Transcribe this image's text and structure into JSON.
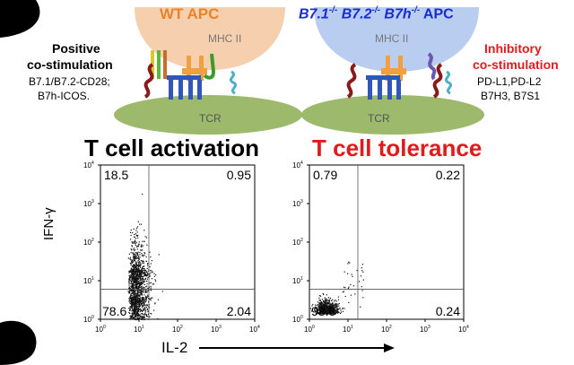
{
  "colors": {
    "wt": "#e8832a",
    "mutant": "#1a2ccc",
    "inhibitory": "#e01b1b",
    "activation": "#000000",
    "tolerance": "#e01b1b",
    "apc_wt": "#f6cfae",
    "apc_mut": "#b9cdf0",
    "tcell": "#9cb96c",
    "mhc": "#f0a040",
    "tcr": "#2f56b8"
  },
  "left_panel": {
    "apc_title": "WT  APC",
    "mhc_label": "MHC II",
    "tcr_label": "TCR",
    "side_title_1": "Positive",
    "side_title_2": "co-stimulation",
    "side_line_1": "B7.1/B7.2-CD28;",
    "side_line_2": "B7h-ICOS.",
    "outcome": "T cell activation"
  },
  "right_panel": {
    "apc_title_parts": [
      "B7.1",
      "-/-",
      " B7.2",
      "-/-",
      " B7h",
      "-/-",
      " APC"
    ],
    "mhc_label": "MHC II",
    "tcr_label": "TCR",
    "side_title_1": "Inhibitory",
    "side_title_2": "co-stimulation",
    "side_line_1": "PD-L1,PD-L2",
    "side_line_2": "B7H3, B7S1",
    "outcome": "T cell tolerance"
  },
  "chart_data": [
    {
      "type": "scatter",
      "name": "activation",
      "xlabel": "IL-2",
      "ylabel": "IFN-γ",
      "scale": "log",
      "xlim": [
        1,
        10000
      ],
      "ylim": [
        1,
        10000
      ],
      "gate": {
        "x": 18,
        "y": 6
      },
      "x_ticks": [
        "10",
        "10",
        "10",
        "10",
        "10"
      ],
      "x_tick_exp": [
        "0",
        "1",
        "2",
        "3",
        "4"
      ],
      "y_ticks": [
        "10",
        "10",
        "10",
        "10",
        "10"
      ],
      "y_tick_exp": [
        "0",
        "1",
        "2",
        "3",
        "4"
      ],
      "quadrants": {
        "upper_left": "18.5",
        "upper_right": "0.95",
        "lower_left": "78.6",
        "lower_right": "2.04"
      }
    },
    {
      "type": "scatter",
      "name": "tolerance",
      "xlabel": "IL-2",
      "ylabel": "",
      "scale": "log",
      "xlim": [
        1,
        10000
      ],
      "ylim": [
        1,
        10000
      ],
      "gate": {
        "x": 18,
        "y": 6
      },
      "x_ticks": [
        "10",
        "10",
        "10",
        "10",
        "10"
      ],
      "x_tick_exp": [
        "0",
        "1",
        "2",
        "3",
        "4"
      ],
      "y_ticks": [
        "10",
        "10",
        "10",
        "10",
        "10"
      ],
      "y_tick_exp": [
        "0",
        "1",
        "2",
        "3",
        "4"
      ],
      "quadrants": {
        "upper_left": "0.79",
        "upper_right": "0.22",
        "lower_left": "98.8",
        "lower_right": "0.24"
      }
    }
  ],
  "axis": {
    "x_label": "IL-2",
    "y_label": "IFN-γ"
  }
}
